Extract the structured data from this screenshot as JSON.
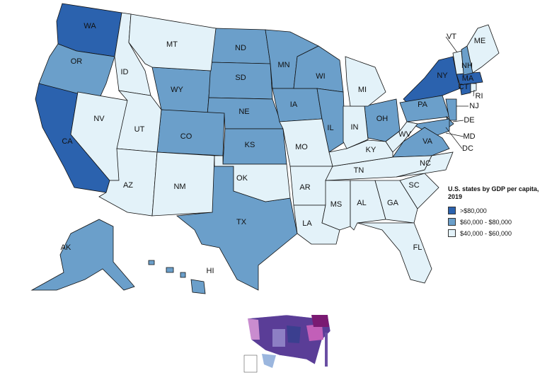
{
  "legend": {
    "title": "U.S. states by GDP per capita, 2019",
    "classes": [
      {
        "label": ">$80,000",
        "color": "#2b62ae",
        "states": [
          "WA",
          "CA",
          "NY",
          "MA",
          "CT",
          "DC"
        ]
      },
      {
        "label": "$60,000 - $80,000",
        "color": "#6b9fca",
        "states": [
          "OR",
          "WY",
          "ND",
          "SD",
          "NE",
          "MN",
          "IA",
          "WI",
          "IL",
          "KS",
          "CO",
          "TX",
          "OH",
          "PA",
          "NH",
          "NJ",
          "DE",
          "MD",
          "VA",
          "AK",
          "HI"
        ]
      },
      {
        "label": "$40,000 - $60,000",
        "color": "#e3f2f9",
        "states": [
          "ID",
          "MT",
          "NV",
          "UT",
          "AZ",
          "NM",
          "OK",
          "MO",
          "AR",
          "LA",
          "MS",
          "AL",
          "GA",
          "FL",
          "SC",
          "NC",
          "TN",
          "KY",
          "IN",
          "MI",
          "WV",
          "VT",
          "ME",
          "RI"
        ]
      }
    ]
  }
}
